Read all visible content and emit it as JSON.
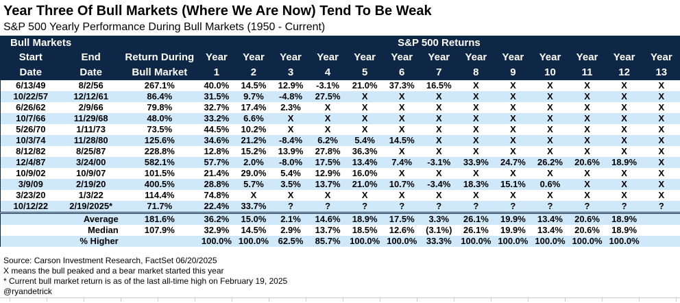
{
  "title": "Year Three Of Bull Markets (Where We Are Now) Tend To Be Weak",
  "subtitle": "S&P 500 Yearly Performance During Bull Markets (1950 - Current)",
  "chart_data": {
    "type": "table",
    "group_header_left": "Bull Markets",
    "group_header_right": "S&P 500 Returns",
    "column_headers": [
      {
        "key": "start-date",
        "line1": "Start",
        "line2": "Date"
      },
      {
        "key": "end-date",
        "line1": "End",
        "line2": "Date"
      },
      {
        "key": "return-during-bull-market",
        "line1": "Return During",
        "line2": "Bull Market"
      },
      {
        "key": "year-1",
        "line1": "Year",
        "line2": "1"
      },
      {
        "key": "year-2",
        "line1": "Year",
        "line2": "2"
      },
      {
        "key": "year-3",
        "line1": "Year",
        "line2": "3"
      },
      {
        "key": "year-4",
        "line1": "Year",
        "line2": "4"
      },
      {
        "key": "year-5",
        "line1": "Year",
        "line2": "5"
      },
      {
        "key": "year-6",
        "line1": "Year",
        "line2": "6"
      },
      {
        "key": "year-7",
        "line1": "Year",
        "line2": "7"
      },
      {
        "key": "year-8",
        "line1": "Year",
        "line2": "8"
      },
      {
        "key": "year-9",
        "line1": "Year",
        "line2": "9"
      },
      {
        "key": "year-10",
        "line1": "Year",
        "line2": "10"
      },
      {
        "key": "year-11",
        "line1": "Year",
        "line2": "11"
      },
      {
        "key": "year-12",
        "line1": "Year",
        "line2": "12"
      },
      {
        "key": "year-13",
        "line1": "Year",
        "line2": "13"
      }
    ],
    "rows": [
      {
        "start": "6/13/49",
        "end": "8/2/56",
        "return": "267.1%",
        "years": [
          "40.0%",
          "14.5%",
          "12.9%",
          "-3.1%",
          "21.0%",
          "37.3%",
          "16.5%",
          "X",
          "X",
          "X",
          "X",
          "X",
          "X"
        ]
      },
      {
        "start": "10/22/57",
        "end": "12/12/61",
        "return": "86.4%",
        "years": [
          "31.5%",
          "9.7%",
          "-4.8%",
          "27.5%",
          "X",
          "X",
          "X",
          "X",
          "X",
          "X",
          "X",
          "X",
          "X"
        ]
      },
      {
        "start": "6/26/62",
        "end": "2/9/66",
        "return": "79.8%",
        "years": [
          "32.7%",
          "17.4%",
          "2.3%",
          "X",
          "X",
          "X",
          "X",
          "X",
          "X",
          "X",
          "X",
          "X",
          "X"
        ]
      },
      {
        "start": "10/7/66",
        "end": "11/29/68",
        "return": "48.0%",
        "years": [
          "33.2%",
          "6.6%",
          "X",
          "X",
          "X",
          "X",
          "X",
          "X",
          "X",
          "X",
          "X",
          "X",
          "X"
        ]
      },
      {
        "start": "5/26/70",
        "end": "1/11/73",
        "return": "73.5%",
        "years": [
          "44.5%",
          "10.2%",
          "X",
          "X",
          "X",
          "X",
          "X",
          "X",
          "X",
          "X",
          "X",
          "X",
          "X"
        ]
      },
      {
        "start": "10/3/74",
        "end": "11/28/80",
        "return": "125.6%",
        "years": [
          "34.6%",
          "21.2%",
          "-8.4%",
          "6.2%",
          "5.4%",
          "14.5%",
          "X",
          "X",
          "X",
          "X",
          "X",
          "X",
          "X"
        ]
      },
      {
        "start": "8/12/82",
        "end": "8/25/87",
        "return": "228.8%",
        "years": [
          "12.8%",
          "15.2%",
          "13.9%",
          "27.8%",
          "36.3%",
          "X",
          "X",
          "X",
          "X",
          "X",
          "X",
          "X",
          "X"
        ]
      },
      {
        "start": "12/4/87",
        "end": "3/24/00",
        "return": "582.1%",
        "years": [
          "57.7%",
          "2.0%",
          "-8.0%",
          "17.5%",
          "13.4%",
          "7.4%",
          "-3.1%",
          "33.9%",
          "24.7%",
          "26.2%",
          "20.6%",
          "18.9%",
          "X"
        ]
      },
      {
        "start": "10/9/02",
        "end": "10/9/07",
        "return": "101.5%",
        "years": [
          "21.4%",
          "29.0%",
          "5.4%",
          "12.9%",
          "16.0%",
          "X",
          "X",
          "X",
          "X",
          "X",
          "X",
          "X",
          "X"
        ]
      },
      {
        "start": "3/9/09",
        "end": "2/19/20",
        "return": "400.5%",
        "years": [
          "28.8%",
          "5.7%",
          "3.5%",
          "13.7%",
          "21.0%",
          "10.7%",
          "-3.4%",
          "18.3%",
          "15.1%",
          "0.6%",
          "X",
          "X",
          "X"
        ]
      },
      {
        "start": "3/23/20",
        "end": "1/3/22",
        "return": "114.4%",
        "years": [
          "74.8%",
          "X",
          "X",
          "X",
          "X",
          "X",
          "X",
          "X",
          "X",
          "X",
          "X",
          "X",
          "X"
        ]
      },
      {
        "start": "10/12/22",
        "end": "2/19/2025*",
        "return": "71.7%",
        "years": [
          "22.4%",
          "33.7%",
          "?",
          "?",
          "?",
          "?",
          "?",
          "?",
          "?",
          "?",
          "?",
          "?",
          "?"
        ]
      }
    ],
    "summary_rows": [
      {
        "label": "Average",
        "return": "181.6%",
        "years": [
          "36.2%",
          "15.0%",
          "2.1%",
          "14.6%",
          "18.9%",
          "17.5%",
          "3.3%",
          "26.1%",
          "19.9%",
          "13.4%",
          "20.6%",
          "18.9%",
          ""
        ]
      },
      {
        "label": "Median",
        "return": "107.9%",
        "years": [
          "32.9%",
          "14.5%",
          "2.9%",
          "13.7%",
          "18.5%",
          "12.6%",
          "(3.1%)",
          "26.1%",
          "19.9%",
          "13.4%",
          "20.6%",
          "18.9%",
          ""
        ]
      },
      {
        "label": "% Higher",
        "return": "",
        "years": [
          "100.0%",
          "100.0%",
          "62.5%",
          "85.7%",
          "100.0%",
          "100.0%",
          "33.3%",
          "100.0%",
          "100.0%",
          "100.0%",
          "100.0%",
          "100.0%",
          ""
        ]
      }
    ]
  },
  "footnotes": [
    "Source: Carson Investment Research, FactSet 06/20/2025",
    "X means the bull peaked and a bear market started this year",
    "* Current bull market return is as of the last all-time high on February 19, 2025",
    "@ryandetrick"
  ],
  "colors": {
    "header_navy": "#0f2747",
    "stripe_blue": "#cfe8fa",
    "text": "#000000",
    "header_text": "#ffffff"
  }
}
